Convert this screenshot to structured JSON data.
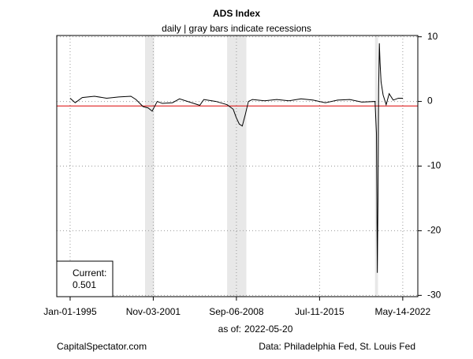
{
  "chart_data": {
    "type": "line",
    "title": "ADS Index",
    "subtitle": "daily | gray bars indicate recessions",
    "series": [
      {
        "name": "ADS Index",
        "color": "#000000",
        "x": [
          "1995-01-01",
          "1995-06-01",
          "1996-01-01",
          "1997-01-01",
          "1998-01-01",
          "1999-01-01",
          "2000-01-01",
          "2000-06-01",
          "2001-01-01",
          "2001-06-01",
          "2001-10-01",
          "2002-03-01",
          "2002-08-01",
          "2003-06-01",
          "2004-01-01",
          "2005-09-01",
          "2006-01-01",
          "2007-01-01",
          "2007-12-01",
          "2008-06-01",
          "2008-09-01",
          "2008-12-01",
          "2009-03-01",
          "2009-06-01",
          "2009-09-01",
          "2010-01-01",
          "2011-01-01",
          "2012-01-01",
          "2013-01-01",
          "2014-01-01",
          "2015-01-01",
          "2016-01-01",
          "2017-01-01",
          "2018-01-01",
          "2019-01-01",
          "2020-02-01",
          "2020-03-15",
          "2020-04-10",
          "2020-05-01",
          "2020-05-20",
          "2020-06-10",
          "2020-07-01",
          "2020-08-01",
          "2020-10-01",
          "2021-01-01",
          "2021-04-01",
          "2021-08-01",
          "2022-01-01",
          "2022-05-20"
        ],
        "values": [
          0.5,
          -0.2,
          0.6,
          0.8,
          0.5,
          0.7,
          0.8,
          0.3,
          -0.8,
          -1.0,
          -1.5,
          0,
          -0.3,
          -0.2,
          0.4,
          -0.6,
          0.3,
          0.0,
          -0.5,
          -1.2,
          -2.5,
          -3.5,
          -3.8,
          -2.0,
          0.0,
          0.3,
          0.1,
          0.3,
          0.1,
          0.4,
          0.2,
          -0.2,
          0.2,
          0.3,
          -0.1,
          0.0,
          -5,
          -26.5,
          -15,
          2,
          9,
          6,
          3,
          1,
          -0.5,
          1.2,
          0.2,
          0.5,
          0.501
        ]
      }
    ],
    "recessions": [
      [
        "2001-03-01",
        "2001-11-30"
      ],
      [
        "2007-12-01",
        "2009-06-30"
      ],
      [
        "2020-02-01",
        "2020-04-30"
      ]
    ],
    "recession_color": "#e8e8e8",
    "reference_line": -0.7,
    "reference_color": "#e02020",
    "xlim": [
      "1993-11-25",
      "2023-08-10"
    ],
    "xticks": [
      {
        "value": "1995-01-01",
        "label": "Jan-01-1995"
      },
      {
        "value": "2001-11-03",
        "label": "Nov-03-2001"
      },
      {
        "value": "2008-09-06",
        "label": "Sep-06-2008"
      },
      {
        "value": "2015-07-11",
        "label": "Jul-11-2015"
      },
      {
        "value": "2022-05-14",
        "label": "May-14-2022"
      }
    ],
    "ylim": [
      -30.2,
      10.2
    ],
    "yticks": [
      10,
      0,
      -10,
      -20,
      -30
    ],
    "grid": true,
    "current_label": "Current:",
    "current_value": "0.501",
    "as_of_label": "as of:",
    "as_of": "2022-05-20",
    "source_left": "CapitalSpectator.com",
    "source_right": "Data: Philadelphia Fed, St. Louis Fed"
  }
}
